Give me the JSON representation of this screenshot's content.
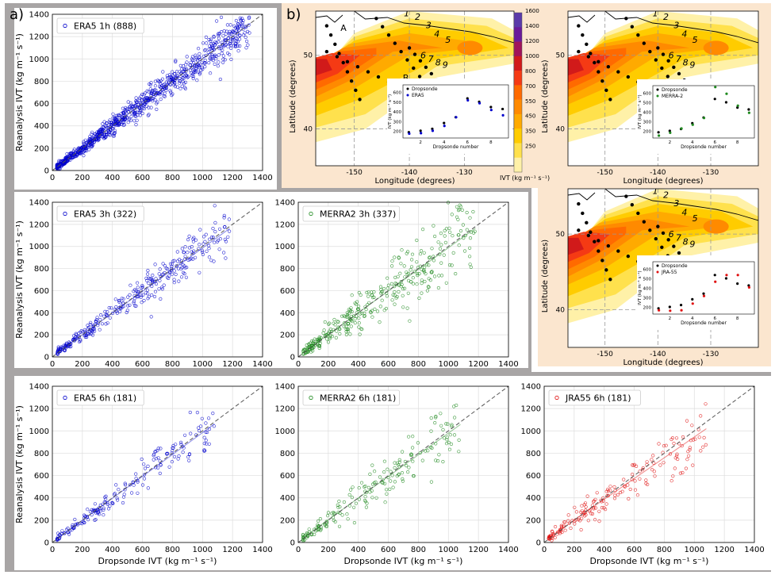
{
  "labels": {
    "panel_a": "a)",
    "panel_b": "b)"
  },
  "colors": {
    "frame_a": "#a8a5a5",
    "frame_b": "#fbe6cf",
    "era5": "#0000cc",
    "merra2": "#1f8a1f",
    "jra55": "#e01010",
    "one_to_one": "#555555"
  },
  "chart_data": [
    {
      "id": "sc-era5-1h",
      "type": "scatter",
      "legend": "ERA5 1h (888)",
      "color": "era5",
      "xlabel": "",
      "ylabel": "Reanalysis IVT (kg m⁻¹ s⁻¹)",
      "xlim": [
        0,
        1400
      ],
      "ylim": [
        0,
        1400
      ],
      "ticks": [
        0,
        200,
        400,
        600,
        800,
        1000,
        1200,
        1400
      ],
      "n": 888,
      "spread": 0.07,
      "xmax": 1320,
      "fit": [
        1.0,
        0
      ],
      "grid": true
    },
    {
      "id": "sc-era5-3h",
      "type": "scatter",
      "legend": "ERA5 3h (322)",
      "color": "era5",
      "xlabel": "",
      "ylabel": "Reanalysis IVT (kg m⁻¹ s⁻¹)",
      "xlim": [
        0,
        1400
      ],
      "ylim": [
        0,
        1400
      ],
      "ticks": [
        0,
        200,
        400,
        600,
        800,
        1000,
        1200,
        1400
      ],
      "n": 322,
      "spread": 0.08,
      "xmax": 1180,
      "fit": [
        0.98,
        5
      ],
      "grid": true
    },
    {
      "id": "sc-merra2-3h",
      "type": "scatter",
      "legend": "MERRA2 3h (337)",
      "color": "merra2",
      "xlabel": "",
      "ylabel": "",
      "xlim": [
        0,
        1400
      ],
      "ylim": [
        0,
        1400
      ],
      "ticks": [
        0,
        200,
        400,
        600,
        800,
        1000,
        1200,
        1400
      ],
      "n": 337,
      "spread": 0.16,
      "xmax": 1180,
      "fit": [
        0.98,
        8
      ],
      "grid": true
    },
    {
      "id": "sc-era5-6h",
      "type": "scatter",
      "legend": "ERA5 6h (181)",
      "color": "era5",
      "xlabel": "Dropsonde IVT (kg m⁻¹ s⁻¹)",
      "ylabel": "Reanalysis IVT (kg m⁻¹ s⁻¹)",
      "xlim": [
        0,
        1400
      ],
      "ylim": [
        0,
        1400
      ],
      "ticks": [
        0,
        200,
        400,
        600,
        800,
        1000,
        1200,
        1400
      ],
      "n": 181,
      "spread": 0.09,
      "xmax": 1080,
      "fit": [
        0.98,
        4
      ],
      "grid": true
    },
    {
      "id": "sc-merra2-6h",
      "type": "scatter",
      "legend": "MERRA2 6h (181)",
      "color": "merra2",
      "xlabel": "Dropsonde IVT (kg m⁻¹ s⁻¹)",
      "ylabel": "",
      "xlim": [
        0,
        1400
      ],
      "ylim": [
        0,
        1400
      ],
      "ticks": [
        0,
        200,
        400,
        600,
        800,
        1000,
        1200,
        1400
      ],
      "n": 181,
      "spread": 0.17,
      "xmax": 1080,
      "fit": [
        0.97,
        10
      ],
      "grid": true
    },
    {
      "id": "sc-jra55-6h",
      "type": "scatter",
      "legend": "JRA55 6h (181)",
      "color": "jra55",
      "xlabel": "Dropsonde IVT (kg m⁻¹ s⁻¹)",
      "ylabel": "",
      "xlim": [
        0,
        1400
      ],
      "ylim": [
        0,
        1400
      ],
      "ticks": [
        0,
        200,
        400,
        600,
        800,
        1000,
        1200,
        1400
      ],
      "n": 181,
      "spread": 0.13,
      "xmax": 1080,
      "fit": [
        0.93,
        15
      ],
      "grid": true
    }
  ],
  "maps": {
    "xlabel": "Longitude (degrees)",
    "ylabel": "Latitude (degrees)",
    "lon_ticks": [
      "-150",
      "-140",
      "-130"
    ],
    "lat_ticks": [
      "40",
      "50"
    ],
    "point_labels": [
      "1",
      "2",
      "3",
      "4",
      "5",
      "6",
      "7",
      "8",
      "9"
    ],
    "marker_a": "A",
    "marker_b": "B",
    "colorbar": {
      "title": "IVT (kg m⁻¹ s⁻¹)",
      "ticks": [
        "250",
        "350",
        "450",
        "550",
        "700",
        "800",
        "1000",
        "1200",
        "1400",
        "1600"
      ],
      "colors": [
        "#fff1a8",
        "#ffe14d",
        "#ffcc00",
        "#ffaa00",
        "#ff8a00",
        "#ff6a00",
        "#f53a14",
        "#d11a1a",
        "#a0145a",
        "#6a1a9a",
        "#5a3aaa"
      ]
    }
  },
  "insets": {
    "xlabel": "Dropsonde number",
    "ylabel": "IVT (kg m⁻¹ s⁻¹)",
    "x_ticks": [
      "2",
      "4",
      "6",
      "8"
    ],
    "y_ticks": [
      "200",
      "300",
      "400",
      "500",
      "600"
    ],
    "dropsonde_legend": "Dropsonde",
    "dropsonde": [
      190,
      205,
      225,
      285,
      345,
      540,
      505,
      450,
      430
    ],
    "series": [
      {
        "name": "ERA5",
        "color": "era5",
        "values": [
          175,
          180,
          205,
          255,
          345,
          520,
          490,
          420,
          365
        ]
      },
      {
        "name": "MERRA-2",
        "color": "merra2",
        "values": [
          155,
          185,
          230,
          270,
          340,
          665,
          595,
          470,
          395
        ]
      },
      {
        "name": "JRA-55",
        "color": "jra55",
        "values": [
          170,
          165,
          170,
          240,
          320,
          470,
          540,
          540,
          410
        ]
      }
    ]
  }
}
